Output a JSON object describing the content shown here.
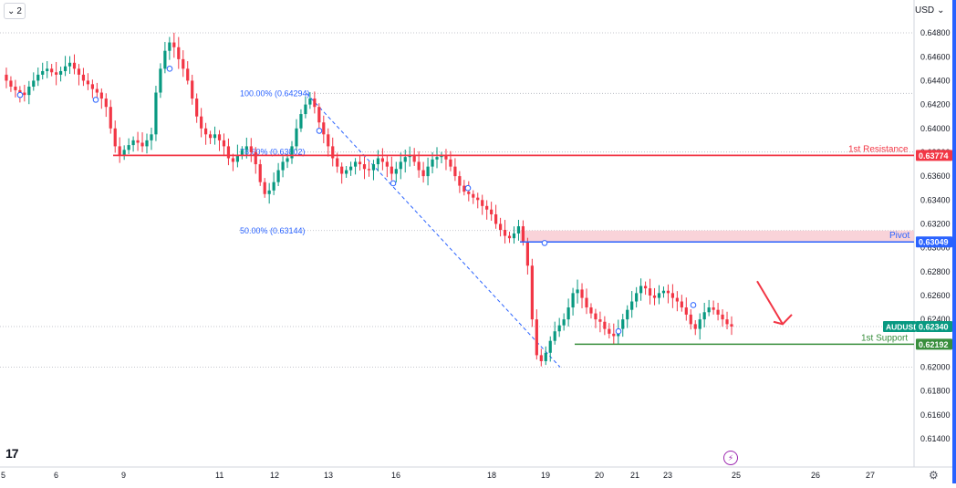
{
  "toolbar": {
    "interval_label": "2",
    "currency": "USD"
  },
  "colors": {
    "up": "#089981",
    "down": "#f23645",
    "resistance": "#f23645",
    "pivot": "#2962ff",
    "support": "#388e3c",
    "fib": "#2962ff",
    "arrow": "#f23645",
    "pivot_zone": "#f8c8d0",
    "text": "#131722"
  },
  "chart_data": {
    "type": "candlestick",
    "symbol": "AUDUSD",
    "ylim": [
      0.614,
      0.649
    ],
    "y_ticks": [
      "0.64800",
      "0.64600",
      "0.64400",
      "0.64200",
      "0.64000",
      "0.63800",
      "0.63600",
      "0.63400",
      "0.63200",
      "0.63000",
      "0.62800",
      "0.62600",
      "0.62400",
      "0.62200",
      "0.62000",
      "0.61800",
      "0.61600",
      "0.61400"
    ],
    "x_ticks": [
      "5",
      "6",
      "9",
      "11",
      "12",
      "13",
      "16",
      "18",
      "19",
      "20",
      "21",
      "23",
      "25",
      "26",
      "27"
    ],
    "levels": [
      {
        "name": "1st Resistance",
        "value": 0.63774,
        "label": "0.63774"
      },
      {
        "name": "Pivot",
        "value": 0.63049,
        "label": "0.63049"
      },
      {
        "name": "1st Support",
        "value": 0.62192,
        "label": "0.62192"
      }
    ],
    "current_price": {
      "label": "AUDUSD",
      "value": 0.6234,
      "text": "0.62340"
    },
    "fibonacci": [
      {
        "text": "100.00% (0.64294)",
        "value": 0.64294
      },
      {
        "text": "78.60% (0.63802)",
        "value": 0.63802
      },
      {
        "text": "50.00% (0.63144)",
        "value": 0.63144
      }
    ],
    "close_path": [
      0.6445,
      0.644,
      0.6435,
      0.6432,
      0.643,
      0.6428,
      0.6435,
      0.644,
      0.6445,
      0.6448,
      0.645,
      0.6447,
      0.6445,
      0.6448,
      0.6452,
      0.6455,
      0.645,
      0.6445,
      0.644,
      0.6437,
      0.6433,
      0.643,
      0.6425,
      0.6418,
      0.64,
      0.6385,
      0.6378,
      0.6382,
      0.6386,
      0.639,
      0.6388,
      0.6385,
      0.639,
      0.6395,
      0.643,
      0.645,
      0.6465,
      0.6472,
      0.6468,
      0.6458,
      0.645,
      0.644,
      0.6425,
      0.641,
      0.64,
      0.6395,
      0.6392,
      0.6395,
      0.639,
      0.6385,
      0.6375,
      0.6372,
      0.6378,
      0.6382,
      0.6385,
      0.638,
      0.637,
      0.6355,
      0.6345,
      0.6348,
      0.6355,
      0.6365,
      0.6372,
      0.6375,
      0.6385,
      0.64,
      0.6412,
      0.642,
      0.6425,
      0.6418,
      0.6405,
      0.6395,
      0.6385,
      0.6375,
      0.6368,
      0.6362,
      0.6365,
      0.6368,
      0.6372,
      0.637,
      0.6366,
      0.6365,
      0.637,
      0.6375,
      0.6372,
      0.6368,
      0.6362,
      0.6366,
      0.6372,
      0.6376,
      0.6378,
      0.6372,
      0.6365,
      0.636,
      0.6368,
      0.6374,
      0.6376,
      0.6377,
      0.6374,
      0.6368,
      0.636,
      0.6352,
      0.6347,
      0.6345,
      0.6342,
      0.634,
      0.6335,
      0.6332,
      0.6328,
      0.632,
      0.6315,
      0.631,
      0.6308,
      0.6312,
      0.6318,
      0.6305,
      0.6285,
      0.624,
      0.621,
      0.6205,
      0.6212,
      0.6222,
      0.623,
      0.6235,
      0.624,
      0.625,
      0.6262,
      0.6265,
      0.6258,
      0.625,
      0.6245,
      0.624,
      0.6238,
      0.6232,
      0.6228,
      0.6226,
      0.6232,
      0.624,
      0.6248,
      0.6255,
      0.6262,
      0.6268,
      0.6266,
      0.626,
      0.6258,
      0.6262,
      0.6264,
      0.6262,
      0.6258,
      0.6255,
      0.625,
      0.6244,
      0.6236,
      0.6232,
      0.624,
      0.6246,
      0.625,
      0.6248,
      0.6244,
      0.624,
      0.6236,
      0.6234
    ],
    "x_labels_note": ""
  }
}
